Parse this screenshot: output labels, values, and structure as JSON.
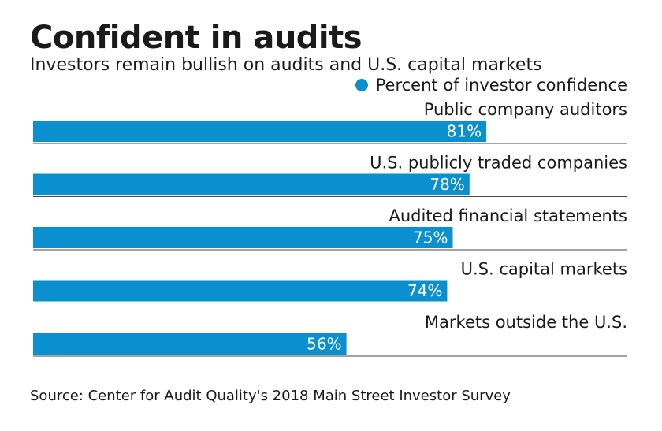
{
  "title": "Confident in audits",
  "subtitle": "Investors remain bullish on audits and U.S. capital markets",
  "legend": {
    "label": "Percent of investor confidence"
  },
  "source": "Source: Center for Audit Quality's 2018 Main Street Investor Survey",
  "colors": {
    "bar": "#0a8fcf",
    "divider": "#4a4a4a",
    "text": "#1a1a1a",
    "bar_label": "#ffffff"
  },
  "chart_data": {
    "type": "bar",
    "orientation": "horizontal",
    "title": "Confident in audits",
    "subtitle": "Investors remain bullish on audits and U.S. capital markets",
    "categories": [
      "Public company auditors",
      "U.S. publicly traded companies",
      "Audited financial statements",
      "U.S. capital markets",
      "Markets outside the U.S."
    ],
    "series": [
      {
        "name": "Percent of investor confidence",
        "values": [
          81,
          78,
          75,
          74,
          56
        ]
      }
    ],
    "value_suffix": "%",
    "xlim": [
      0,
      100
    ],
    "grid": false,
    "legend_position": "top-right"
  }
}
